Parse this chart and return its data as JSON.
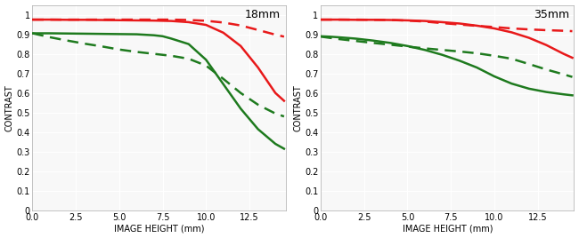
{
  "title_left": "18mm",
  "title_right": "35mm",
  "xlabel": "IMAGE HEIGHT (mm)",
  "ylabel": "CONTRAST",
  "xlim": [
    0,
    14.6
  ],
  "ylim": [
    0,
    1.05
  ],
  "xticks": [
    0,
    2.5,
    5,
    7.5,
    10,
    12.5
  ],
  "yticks": [
    0,
    0.1,
    0.2,
    0.3,
    0.4,
    0.5,
    0.6,
    0.7,
    0.8,
    0.9,
    1
  ],
  "ytick_labels": [
    "0",
    "0.1",
    "0.2",
    "0.3",
    "0.4",
    "0.5",
    "0.6",
    "0.7",
    "0.8",
    "0.9",
    "1"
  ],
  "background_color": "#f8f8f8",
  "grid_color": "#ffffff",
  "red_color": "#e8191a",
  "green_color": "#1e7a1e",
  "left_red_solid_x": [
    0,
    0.5,
    1,
    2,
    3,
    4,
    5,
    6,
    7,
    8,
    9,
    10,
    11,
    12,
    13,
    14,
    14.5
  ],
  "left_red_solid_y": [
    0.975,
    0.975,
    0.975,
    0.974,
    0.974,
    0.973,
    0.972,
    0.971,
    0.97,
    0.968,
    0.962,
    0.948,
    0.908,
    0.84,
    0.73,
    0.6,
    0.56
  ],
  "left_red_dashed_x": [
    0,
    0.5,
    1,
    2,
    3,
    4,
    5,
    6,
    7,
    8,
    9,
    10,
    11,
    12,
    13,
    14,
    14.5
  ],
  "left_red_dashed_y": [
    0.975,
    0.975,
    0.975,
    0.975,
    0.975,
    0.975,
    0.975,
    0.975,
    0.975,
    0.975,
    0.973,
    0.969,
    0.96,
    0.945,
    0.922,
    0.898,
    0.888
  ],
  "left_green_solid_x": [
    0,
    0.5,
    1,
    2,
    3,
    4,
    5,
    6,
    7,
    7.5,
    8,
    9,
    10,
    11,
    12,
    13,
    14,
    14.5
  ],
  "left_green_solid_y": [
    0.905,
    0.905,
    0.905,
    0.904,
    0.903,
    0.902,
    0.901,
    0.9,
    0.895,
    0.89,
    0.878,
    0.85,
    0.77,
    0.645,
    0.52,
    0.415,
    0.34,
    0.315
  ],
  "left_green_dashed_x": [
    0,
    0.5,
    1,
    2,
    3,
    4,
    5,
    6,
    7,
    8,
    9,
    10,
    11,
    12,
    13,
    14,
    14.5
  ],
  "left_green_dashed_y": [
    0.905,
    0.895,
    0.885,
    0.868,
    0.852,
    0.838,
    0.822,
    0.81,
    0.8,
    0.79,
    0.775,
    0.74,
    0.672,
    0.6,
    0.54,
    0.495,
    0.48
  ],
  "right_red_solid_x": [
    0,
    0.5,
    1,
    2,
    3,
    4,
    5,
    6,
    7,
    8,
    9,
    10,
    11,
    12,
    13,
    14,
    14.5
  ],
  "right_red_solid_y": [
    0.975,
    0.975,
    0.975,
    0.974,
    0.974,
    0.973,
    0.971,
    0.968,
    0.962,
    0.955,
    0.944,
    0.93,
    0.91,
    0.882,
    0.845,
    0.8,
    0.78
  ],
  "right_red_dashed_x": [
    0,
    0.5,
    1,
    2,
    3,
    4,
    5,
    6,
    7,
    8,
    9,
    10,
    11,
    12,
    13,
    14,
    14.5
  ],
  "right_red_dashed_y": [
    0.975,
    0.975,
    0.975,
    0.975,
    0.974,
    0.973,
    0.97,
    0.965,
    0.957,
    0.95,
    0.943,
    0.937,
    0.93,
    0.925,
    0.921,
    0.918,
    0.916
  ],
  "right_green_solid_x": [
    0,
    0.5,
    1,
    2,
    3,
    4,
    5,
    6,
    7,
    8,
    9,
    10,
    11,
    12,
    13,
    14,
    14.5
  ],
  "right_green_solid_y": [
    0.89,
    0.888,
    0.885,
    0.878,
    0.868,
    0.856,
    0.84,
    0.82,
    0.795,
    0.765,
    0.73,
    0.685,
    0.648,
    0.622,
    0.605,
    0.593,
    0.588
  ],
  "right_green_dashed_x": [
    0,
    0.5,
    1,
    2,
    3,
    4,
    5,
    6,
    7,
    8,
    9,
    10,
    11,
    12,
    13,
    14,
    14.5
  ],
  "right_green_dashed_y": [
    0.888,
    0.882,
    0.876,
    0.866,
    0.856,
    0.847,
    0.837,
    0.828,
    0.82,
    0.812,
    0.803,
    0.79,
    0.775,
    0.748,
    0.72,
    0.695,
    0.682
  ],
  "linewidth": 1.8,
  "title_fontsize": 9,
  "label_fontsize": 7,
  "tick_fontsize": 7
}
